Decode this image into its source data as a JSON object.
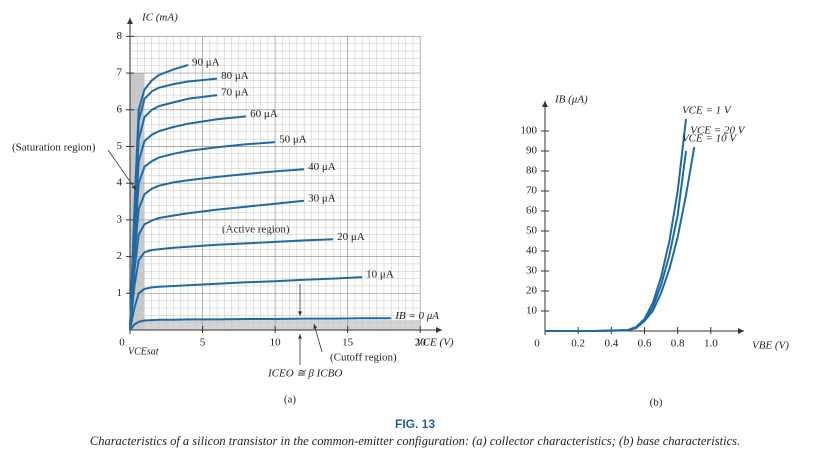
{
  "figure": {
    "label": "FIG. 13",
    "caption": "Characteristics of a silicon transistor in the common-emitter configuration: (a) collector characteristics; (b) base characteristics."
  },
  "chart_data": [
    {
      "type": "line",
      "panel": "(a)",
      "y_label": "IC (mA)",
      "x_label": "VCE (V)",
      "grid": true,
      "annotations": [
        "(Saturation region)",
        "(Active region)",
        "(Cutoff region)",
        "VCEsat",
        "ICEO ≅ β ICBO"
      ],
      "xlim": [
        0,
        21.5
      ],
      "ylim": [
        0,
        8.5
      ],
      "xticks": [
        0,
        5,
        10,
        15,
        20
      ],
      "yticks": [
        1,
        2,
        3,
        4,
        5,
        6,
        7,
        8
      ],
      "x": [
        0,
        0.3,
        0.6,
        1,
        1.5,
        2,
        3,
        4,
        6,
        8,
        10,
        12,
        14,
        16,
        18,
        20
      ],
      "series": [
        {
          "name": "IB = 0 μA",
          "color": "#1f6aa5",
          "values": [
            0,
            0.15,
            0.22,
            0.26,
            0.27,
            0.28,
            0.28,
            0.29,
            0.29,
            0.3,
            0.3,
            0.31,
            0.31,
            0.32,
            0.32,
            null
          ]
        },
        {
          "name": "10 μA",
          "color": "#1f6aa5",
          "values": [
            0,
            0.6,
            1.0,
            1.12,
            1.16,
            1.18,
            1.2,
            1.22,
            1.26,
            1.3,
            1.33,
            1.37,
            1.4,
            1.44,
            null,
            null
          ]
        },
        {
          "name": "20 μA",
          "color": "#1f6aa5",
          "values": [
            0,
            1.2,
            1.9,
            2.12,
            2.18,
            2.2,
            2.24,
            2.27,
            2.32,
            2.36,
            2.4,
            2.44,
            2.47,
            null,
            null,
            null
          ]
        },
        {
          "name": "30 μA",
          "color": "#1f6aa5",
          "values": [
            0,
            1.6,
            2.6,
            2.88,
            2.98,
            3.05,
            3.12,
            3.18,
            3.28,
            3.36,
            3.44,
            3.52,
            null,
            null,
            null,
            null
          ]
        },
        {
          "name": "40 μA",
          "color": "#1f6aa5",
          "values": [
            0,
            2.0,
            3.3,
            3.7,
            3.85,
            3.93,
            4.02,
            4.08,
            4.17,
            4.25,
            4.32,
            4.38,
            null,
            null,
            null,
            null
          ]
        },
        {
          "name": "50 μA",
          "color": "#1f6aa5",
          "values": [
            0,
            2.3,
            4.0,
            4.45,
            4.6,
            4.7,
            4.8,
            4.88,
            4.98,
            5.06,
            5.12,
            null,
            null,
            null,
            null,
            null
          ]
        },
        {
          "name": "60 μA",
          "color": "#1f6aa5",
          "values": [
            0,
            2.6,
            4.6,
            5.15,
            5.32,
            5.42,
            5.53,
            5.62,
            5.74,
            5.82,
            null,
            null,
            null,
            null,
            null,
            null
          ]
        },
        {
          "name": "70 μA",
          "color": "#1f6aa5",
          "values": [
            0,
            2.9,
            5.2,
            5.8,
            6.0,
            6.1,
            6.2,
            6.3,
            6.4,
            null,
            null,
            null,
            null,
            null,
            null,
            null
          ]
        },
        {
          "name": "80 μA",
          "color": "#1f6aa5",
          "values": [
            0,
            3.1,
            5.7,
            6.3,
            6.5,
            6.6,
            6.7,
            6.77,
            6.85,
            null,
            null,
            null,
            null,
            null,
            null,
            null
          ]
        },
        {
          "name": "90 μA",
          "color": "#1f6aa5",
          "values": [
            0,
            3.3,
            6.0,
            6.55,
            6.8,
            6.95,
            7.1,
            7.22,
            null,
            null,
            null,
            null,
            null,
            null,
            null,
            null
          ]
        }
      ]
    },
    {
      "type": "line",
      "panel": "(b)",
      "y_label": "IB (μA)",
      "x_label": "VBE (V)",
      "grid": false,
      "xlim": [
        0,
        1.2
      ],
      "ylim": [
        0,
        115
      ],
      "xticks": [
        0,
        0.2,
        0.4,
        0.6,
        0.8,
        {
          "value": 1,
          "label": "1.0"
        }
      ],
      "yticks": [
        10,
        20,
        30,
        40,
        50,
        60,
        70,
        80,
        90,
        100
      ],
      "x": [
        0,
        0.3,
        0.5,
        0.55,
        0.6,
        0.65,
        0.7,
        0.75,
        0.8,
        0.85,
        0.9
      ],
      "series": [
        {
          "name": "VCE = 1 V",
          "color": "#1f6aa5",
          "values": [
            0,
            0,
            0.5,
            2,
            6,
            14,
            27,
            45,
            70,
            106,
            null
          ]
        },
        {
          "name": "VCE = 10 V",
          "color": "#1f6aa5",
          "values": [
            0,
            0,
            0.4,
            1.8,
            5.5,
            12,
            23,
            38,
            58,
            90,
            null
          ]
        },
        {
          "name": "VCE = 20 V",
          "color": "#1f6aa5",
          "values": [
            0,
            0,
            0.3,
            1.5,
            5,
            10,
            19,
            31,
            47,
            68,
            92
          ]
        }
      ]
    }
  ]
}
